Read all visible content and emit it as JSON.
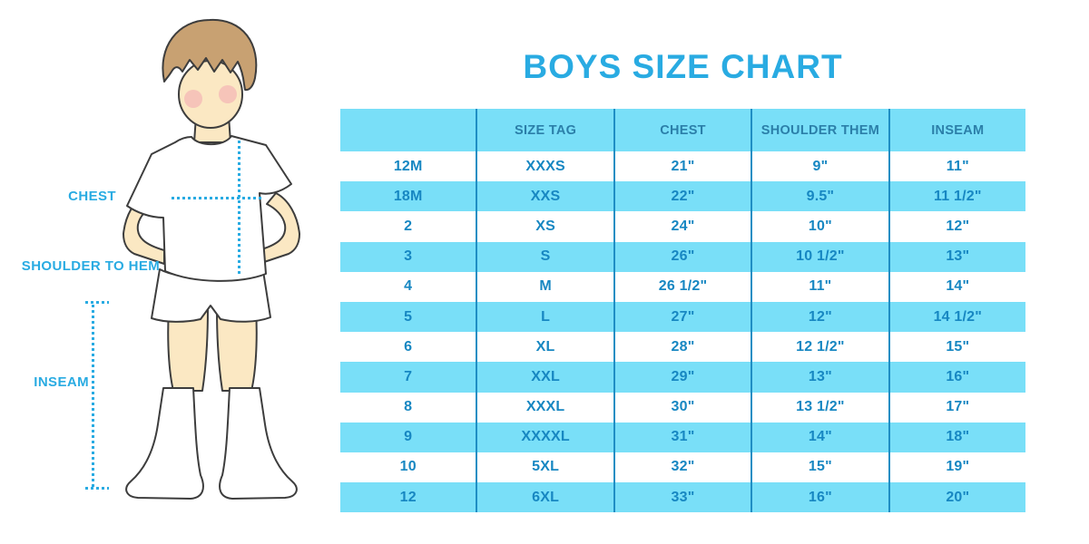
{
  "title": "BOYS SIZE CHART",
  "colors": {
    "accent": "#29abe2",
    "table-bg": "#79dff8",
    "table-line": "#1f8ec4",
    "table-text": "#1787c2",
    "table-head-text": "#2b7fa9",
    "hair": "#c8a172",
    "skin": "#fbe8c3",
    "outline": "#3d3d3d",
    "cheek": "#f2a0b0"
  },
  "figure": {
    "labels": [
      {
        "id": "chest",
        "text": "CHEST"
      },
      {
        "id": "shoulder-to-hem",
        "text": "SHOULDER TO HEM"
      },
      {
        "id": "inseam",
        "text": "INSEAM"
      }
    ]
  },
  "chart_data": {
    "type": "table",
    "title": "BOYS SIZE CHART",
    "columns": [
      "",
      "SIZE TAG",
      "CHEST",
      "SHOULDER THEM",
      "INSEAM"
    ],
    "rows": [
      [
        "12M",
        "XXXS",
        "21\"",
        "9\"",
        "11\""
      ],
      [
        "18M",
        "XXS",
        "22\"",
        "9.5\"",
        "11 1/2\""
      ],
      [
        "2",
        "XS",
        "24\"",
        "10\"",
        "12\""
      ],
      [
        "3",
        "S",
        "26\"",
        "10 1/2\"",
        "13\""
      ],
      [
        "4",
        "M",
        "26 1/2\"",
        "11\"",
        "14\""
      ],
      [
        "5",
        "L",
        "27\"",
        "12\"",
        "14 1/2\""
      ],
      [
        "6",
        "XL",
        "28\"",
        "12 1/2\"",
        "15\""
      ],
      [
        "7",
        "XXL",
        "29\"",
        "13\"",
        "16\""
      ],
      [
        "8",
        "XXXL",
        "30\"",
        "13 1/2\"",
        "17\""
      ],
      [
        "9",
        "XXXXL",
        "31\"",
        "14\"",
        "18\""
      ],
      [
        "10",
        "5XL",
        "32\"",
        "15\"",
        "19\""
      ],
      [
        "12",
        "6XL",
        "33\"",
        "16\"",
        "20\""
      ]
    ]
  }
}
